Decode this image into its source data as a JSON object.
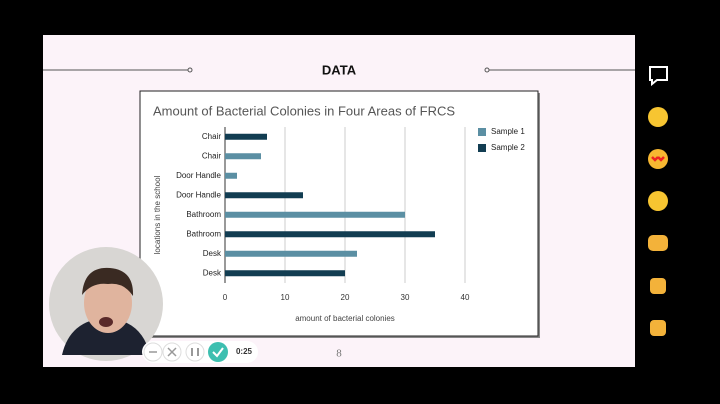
{
  "slide": {
    "heading": "DATA",
    "page_number": "8"
  },
  "recorder": {
    "timer": "0:25"
  },
  "chart_data": {
    "type": "bar",
    "orientation": "horizontal",
    "title": "Amount of Bacterial Colonies in Four Areas of FRCS",
    "x_label": "amount of bacterial colonies",
    "y_label": "locations in the school",
    "categories": [
      "Chair",
      "Chair",
      "Door Handle",
      "Door Handle",
      "Bathroom",
      "Bathroom",
      "Desk",
      "Desk"
    ],
    "series": [
      {
        "name": "Sample 1",
        "color": "#5b8fa3",
        "values": [
          null,
          6,
          2,
          null,
          30,
          null,
          22,
          null
        ]
      },
      {
        "name": "Sample 2",
        "color": "#123d52",
        "values": [
          7,
          null,
          null,
          13,
          null,
          35,
          null,
          20
        ]
      }
    ],
    "xlim": [
      0,
      43
    ],
    "xticks": [
      0,
      10,
      20,
      30,
      40
    ],
    "grid": true,
    "legend": "top-right"
  }
}
